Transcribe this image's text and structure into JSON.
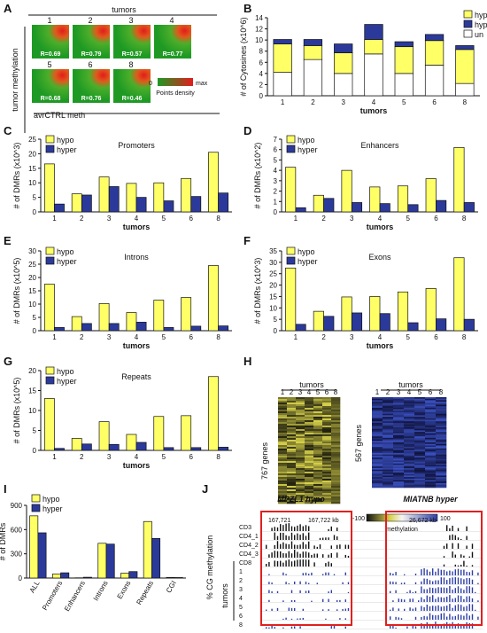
{
  "colors": {
    "hypo": "#ffff66",
    "hyper": "#2b3a9a",
    "un": "#ffffff",
    "outline": "#111111",
    "heat_green": "#21a321",
    "heat_red": "#e21c1c",
    "heat_blue": "#2e3fa6",
    "heat_yellow": "#d8d24a"
  },
  "panels": {
    "A": "A",
    "B": "B",
    "C": "C",
    "D": "D",
    "E": "E",
    "F": "F",
    "G": "G",
    "H": "H",
    "I": "I",
    "J": "J"
  },
  "panel_a": {
    "title": "tumors",
    "ylabel": "tumor methylation",
    "xlabel": "avrCTRL meth",
    "legend_min": "0",
    "legend_max": "max",
    "legend_label": "Points density",
    "tiles": [
      {
        "num": "1",
        "r": "R=0.69"
      },
      {
        "num": "2",
        "r": "R=0.79"
      },
      {
        "num": "3",
        "r": "R=0.57"
      },
      {
        "num": "4",
        "r": "R=0.77"
      },
      {
        "num": "5",
        "r": "R=0.68"
      },
      {
        "num": "6",
        "r": "R=0.76"
      },
      {
        "num": "8",
        "r": "R=0.46"
      }
    ]
  },
  "chart_data": [
    {
      "id": "B",
      "type": "bar",
      "stacked": true,
      "categories": [
        "1",
        "2",
        "3",
        "4",
        "5",
        "6",
        "8"
      ],
      "series": [
        {
          "name": "un",
          "values": [
            4.2,
            6.5,
            4.0,
            7.5,
            4.0,
            5.5,
            2.2
          ]
        },
        {
          "name": "hypo",
          "values": [
            5.1,
            2.5,
            3.7,
            2.6,
            4.8,
            4.4,
            6.1
          ]
        },
        {
          "name": "hyper",
          "values": [
            0.8,
            1.1,
            1.6,
            2.7,
            0.9,
            1.1,
            0.7
          ]
        }
      ],
      "ylabel": "# of Cytosines (x10^6)",
      "xlabel": "tumors",
      "ylim": [
        0,
        14
      ],
      "yticks": [
        "0",
        "2",
        "4",
        "6",
        "8",
        "10",
        "12",
        "14"
      ],
      "legend": [
        "hypo",
        "hyper",
        "un"
      ],
      "title": ""
    },
    {
      "id": "C",
      "type": "bar",
      "categories": [
        "1",
        "2",
        "3",
        "4",
        "5",
        "6",
        "8"
      ],
      "series": [
        {
          "name": "hypo",
          "values": [
            16.5,
            6.2,
            12,
            9.8,
            10,
            11.5,
            20.5
          ]
        },
        {
          "name": "hyper",
          "values": [
            2.7,
            5.8,
            8.7,
            5,
            3.8,
            5.3,
            6.5
          ]
        }
      ],
      "ylabel": "# of DMRs (x10^3)",
      "xlabel": "tumors",
      "ylim": [
        0,
        25
      ],
      "yticks": [
        "0",
        "5",
        "10",
        "15",
        "20",
        "25"
      ],
      "title": "Promoters",
      "legend": [
        "hypo",
        "hyper"
      ]
    },
    {
      "id": "D",
      "type": "bar",
      "categories": [
        "1",
        "2",
        "3",
        "4",
        "5",
        "6",
        "8"
      ],
      "series": [
        {
          "name": "hypo",
          "values": [
            4.3,
            1.6,
            4.0,
            2.4,
            2.5,
            3.2,
            6.2
          ]
        },
        {
          "name": "hyper",
          "values": [
            0.4,
            1.3,
            0.9,
            0.8,
            0.7,
            1.1,
            0.9
          ]
        }
      ],
      "ylabel": "# of DMRs (x10^2)",
      "xlabel": "tumors",
      "ylim": [
        0,
        7
      ],
      "yticks": [
        "0",
        "1",
        "2",
        "3",
        "4",
        "5",
        "6",
        "7"
      ],
      "title": "Enhancers",
      "legend": [
        "hypo",
        "hyper"
      ]
    },
    {
      "id": "E",
      "type": "bar",
      "categories": [
        "1",
        "2",
        "3",
        "4",
        "5",
        "6",
        "8"
      ],
      "series": [
        {
          "name": "hypo",
          "values": [
            17.5,
            5.3,
            10.2,
            6.8,
            11.5,
            12.5,
            24.5
          ]
        },
        {
          "name": "hyper",
          "values": [
            1.2,
            2.7,
            2.7,
            3.2,
            1.2,
            1.7,
            1.8
          ]
        }
      ],
      "ylabel": "# of DMRs (x10^5)",
      "xlabel": "tumors",
      "ylim": [
        0,
        30
      ],
      "yticks": [
        "0",
        "5",
        "10",
        "15",
        "20",
        "25",
        "30"
      ],
      "title": "Introns",
      "legend": [
        "hypo",
        "hyper"
      ]
    },
    {
      "id": "F",
      "type": "bar",
      "categories": [
        "1",
        "2",
        "3",
        "4",
        "5",
        "6",
        "8"
      ],
      "series": [
        {
          "name": "hypo",
          "values": [
            27.5,
            8.5,
            14.8,
            15,
            17,
            18.5,
            32
          ]
        },
        {
          "name": "hyper",
          "values": [
            2.8,
            6.3,
            7.8,
            7.5,
            3.5,
            5.2,
            5
          ]
        }
      ],
      "ylabel": "# of DMRs (x10^3)",
      "xlabel": "tumors",
      "ylim": [
        0,
        35
      ],
      "yticks": [
        "0",
        "5",
        "10",
        "15",
        "20",
        "25",
        "30",
        "35"
      ],
      "title": "Exons",
      "legend": [
        "hypo",
        "hyper"
      ]
    },
    {
      "id": "G",
      "type": "bar",
      "categories": [
        "1",
        "2",
        "3",
        "4",
        "5",
        "6",
        "8"
      ],
      "series": [
        {
          "name": "hypo",
          "values": [
            13,
            3,
            7.2,
            4,
            8.5,
            8.7,
            18.5
          ]
        },
        {
          "name": "hyper",
          "values": [
            0.5,
            1.6,
            1.5,
            2,
            0.7,
            0.7,
            0.8
          ]
        }
      ],
      "ylabel": "# of DMRs (x10^5)",
      "xlabel": "tumors",
      "ylim": [
        0,
        20
      ],
      "yticks": [
        "0",
        "5",
        "10",
        "15",
        "20"
      ],
      "title": "Repeats",
      "legend": [
        "hypo",
        "hyper"
      ]
    },
    {
      "id": "I",
      "type": "bar",
      "categories": [
        "ALL",
        "Promoters",
        "Enhancers",
        "Introns",
        "Exons",
        "Repeats",
        "CGI"
      ],
      "series": [
        {
          "name": "hypo",
          "values": [
            770,
            50,
            3,
            430,
            60,
            700,
            8
          ]
        },
        {
          "name": "hyper",
          "values": [
            560,
            65,
            10,
            420,
            80,
            490,
            6
          ]
        }
      ],
      "ylabel": "# of DMRs",
      "xlabel": "",
      "ylim": [
        0,
        900
      ],
      "yticks": [
        "0",
        "300",
        "600",
        "900"
      ],
      "title": "",
      "legend": [
        "hypo",
        "hyper"
      ]
    }
  ],
  "panel_h": {
    "left": {
      "title": "tumors",
      "cols": [
        "1",
        "2",
        "3",
        "4",
        "5",
        "6",
        "8"
      ],
      "rows_label": "767 genes"
    },
    "right": {
      "title": "tumors",
      "cols": [
        "1",
        "2",
        "3",
        "4",
        "5",
        "6",
        "8"
      ],
      "rows_label": "567 genes"
    },
    "scale_min": "-100",
    "scale_max": "100",
    "scale_label": "methylation"
  },
  "panel_j": {
    "left_title": "MPZL1 hypo",
    "right_title": "MIATNB hyper",
    "coord_left_1": "167,721",
    "coord_left_2": "167,722 kb",
    "coord_right": "26,672 kb",
    "ylabel": "% CG methylation",
    "group_label": "tumors",
    "tracks": [
      "CD3",
      "CD4_1",
      "CD4_2",
      "CD4_3",
      "CD8",
      "1",
      "2",
      "3",
      "4",
      "5",
      "6",
      "8"
    ]
  }
}
